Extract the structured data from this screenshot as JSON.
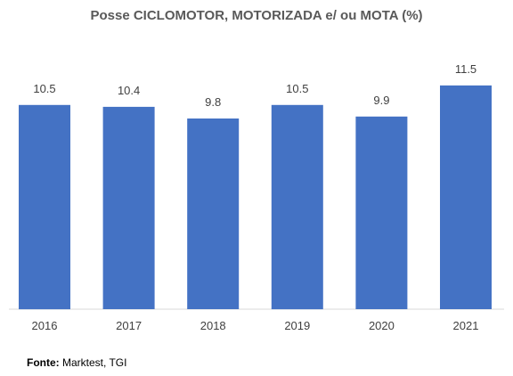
{
  "chart_data": {
    "type": "bar",
    "title": "Posse CICLOMOTOR, MOTORIZADA e/ ou MOTA (%)",
    "categories": [
      "2016",
      "2017",
      "2018",
      "2019",
      "2020",
      "2021"
    ],
    "values": [
      10.5,
      10.4,
      9.8,
      10.5,
      9.9,
      11.5
    ],
    "data_labels": [
      "10.5",
      "10.4",
      "9.8",
      "10.5",
      "9.9",
      "11.5"
    ],
    "xlabel": "",
    "ylabel": "",
    "ylim": [
      0,
      12
    ],
    "grid": false,
    "legend": "none",
    "bar_color": "#4472C4"
  },
  "source": {
    "label": "Fonte:",
    "text": " Marktest, TGI"
  }
}
